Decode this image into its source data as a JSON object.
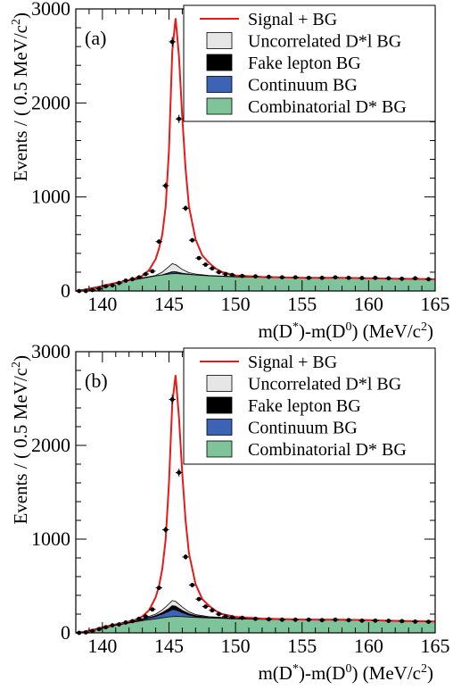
{
  "chart_data": [
    {
      "type": "histogram-fit",
      "panel_label": "(a)",
      "xlabel": {
        "base1": "m(D",
        "sup1": "*",
        "mid": ")-m(D",
        "sup2": "0",
        "end": ") (MeV/c",
        "sup3": "2",
        "tail": ")"
      },
      "ylabel": {
        "base": "Events / ( 0.5 MeV/c",
        "sup": "2",
        "tail": ")"
      },
      "xlim": [
        138,
        165
      ],
      "ylim": [
        0,
        3000
      ],
      "xticks": [
        140,
        145,
        150,
        155,
        160,
        165
      ],
      "yticks": [
        0,
        1000,
        2000,
        3000
      ],
      "grid": false,
      "legend_position": "top-right",
      "legend": [
        {
          "label": "Signal + BG",
          "type": "line",
          "color": "#e8191a"
        },
        {
          "label": "Uncorrelated D*l BG",
          "type": "box",
          "color": "#e6e6e6"
        },
        {
          "label": "Fake lepton BG",
          "type": "box",
          "color": "#000000"
        },
        {
          "label": "Continuum BG",
          "type": "box",
          "color": "#3d63b4"
        },
        {
          "label": "Combinatorial D* BG",
          "type": "box",
          "color": "#7fc39b"
        }
      ],
      "series": [
        {
          "name": "Combinatorial D* BG",
          "x": [
            138,
            139,
            140,
            141,
            142,
            143,
            144,
            145,
            145.5,
            146,
            147,
            148,
            150,
            152,
            155,
            158,
            160,
            162,
            165
          ],
          "y": [
            0,
            20,
            55,
            85,
            110,
            135,
            160,
            180,
            185,
            180,
            170,
            160,
            150,
            145,
            140,
            138,
            135,
            130,
            125
          ]
        },
        {
          "name": "Continuum BG",
          "x": [
            138,
            140,
            143,
            144.5,
            145.25,
            145.5,
            146,
            147,
            148,
            150,
            155,
            160,
            165
          ],
          "y": [
            0,
            55,
            135,
            170,
            200,
            200,
            185,
            170,
            160,
            150,
            140,
            135,
            125
          ]
        },
        {
          "name": "Fake lepton BG",
          "x": [
            138,
            140,
            143,
            144.5,
            145.25,
            145.5,
            146,
            147,
            148,
            150,
            155,
            160,
            165
          ],
          "y": [
            0,
            55,
            135,
            172,
            205,
            205,
            188,
            171,
            161,
            151,
            141,
            136,
            126
          ]
        },
        {
          "name": "Uncorrelated D*l BG",
          "x": [
            138,
            140,
            143,
            144,
            144.5,
            145,
            145.25,
            145.5,
            146,
            146.5,
            147,
            148,
            150,
            155,
            160,
            165
          ],
          "y": [
            0,
            55,
            140,
            165,
            200,
            260,
            290,
            280,
            230,
            195,
            180,
            165,
            152,
            141,
            136,
            126
          ]
        },
        {
          "name": "Signal + BG",
          "x": [
            138,
            138.5,
            139,
            139.5,
            140,
            140.5,
            141,
            141.5,
            142,
            142.5,
            143,
            143.5,
            144,
            144.25,
            144.5,
            144.75,
            145,
            145.25,
            145.5,
            145.75,
            146,
            146.25,
            146.5,
            147,
            147.5,
            148,
            148.5,
            149,
            150,
            152,
            155,
            158,
            160,
            162,
            165
          ],
          "y": [
            0,
            5,
            20,
            35,
            55,
            70,
            85,
            100,
            115,
            135,
            160,
            220,
            340,
            450,
            600,
            900,
            1500,
            2550,
            2900,
            2500,
            1850,
            1300,
            900,
            550,
            380,
            300,
            240,
            200,
            165,
            150,
            140,
            140,
            135,
            130,
            125
          ]
        },
        {
          "name": "Data",
          "type": "scatter",
          "x": [
            138.25,
            138.75,
            139.25,
            139.75,
            140.25,
            140.75,
            141.25,
            141.75,
            142.25,
            142.75,
            143.25,
            143.75,
            144.25,
            144.75,
            145.25,
            145.75,
            146.25,
            146.75,
            147.25,
            147.75,
            148.25,
            148.75,
            149.25,
            149.75,
            150.5,
            151.5,
            152.5,
            153.5,
            154.5,
            155.5,
            156.5,
            157.5,
            158.5,
            159.5,
            160.5,
            161.5,
            162.5,
            163.5,
            164.5
          ],
          "y": [
            0,
            0,
            10,
            25,
            50,
            60,
            85,
            110,
            125,
            145,
            180,
            210,
            525,
            1120,
            2650,
            1830,
            880,
            540,
            350,
            280,
            240,
            200,
            180,
            170,
            160,
            155,
            150,
            145,
            145,
            140,
            140,
            145,
            140,
            138,
            140,
            135,
            130,
            135,
            125
          ]
        }
      ]
    },
    {
      "type": "histogram-fit",
      "panel_label": "(b)",
      "xlabel": {
        "base1": "m(D",
        "sup1": "*",
        "mid": ")-m(D",
        "sup2": "0",
        "end": ") (MeV/c",
        "sup3": "2",
        "tail": ")"
      },
      "ylabel": {
        "base": "Events / ( 0.5 MeV/c",
        "sup": "2",
        "tail": ")"
      },
      "xlim": [
        138,
        165
      ],
      "ylim": [
        0,
        3000
      ],
      "xticks": [
        140,
        145,
        150,
        155,
        160,
        165
      ],
      "yticks": [
        0,
        1000,
        2000,
        3000
      ],
      "grid": false,
      "legend_position": "top-right",
      "legend": [
        {
          "label": "Signal + BG",
          "type": "line",
          "color": "#e8191a"
        },
        {
          "label": "Uncorrelated D*l BG",
          "type": "box",
          "color": "#e6e6e6"
        },
        {
          "label": "Fake lepton BG",
          "type": "box",
          "color": "#000000"
        },
        {
          "label": "Continuum BG",
          "type": "box",
          "color": "#3d63b4"
        },
        {
          "label": "Combinatorial D* BG",
          "type": "box",
          "color": "#7fc39b"
        }
      ],
      "series": [
        {
          "name": "Combinatorial D* BG",
          "x": [
            138,
            139,
            140,
            141,
            142,
            143,
            144,
            145,
            145.5,
            146,
            147,
            148,
            150,
            152,
            155,
            158,
            160,
            162,
            165
          ],
          "y": [
            0,
            20,
            50,
            80,
            105,
            130,
            150,
            170,
            175,
            172,
            165,
            158,
            150,
            145,
            140,
            136,
            133,
            128,
            122
          ]
        },
        {
          "name": "Continuum BG",
          "x": [
            138,
            140,
            143,
            144,
            144.5,
            145,
            145.25,
            145.5,
            146,
            146.5,
            147,
            148,
            150,
            155,
            160,
            165
          ],
          "y": [
            0,
            50,
            140,
            175,
            200,
            230,
            250,
            245,
            215,
            190,
            175,
            162,
            152,
            141,
            134,
            123
          ]
        },
        {
          "name": "Fake lepton BG",
          "x": [
            138,
            140,
            143,
            144,
            144.5,
            145,
            145.25,
            145.5,
            146,
            146.5,
            147,
            148,
            150,
            155,
            160,
            165
          ],
          "y": [
            0,
            50,
            142,
            185,
            215,
            260,
            290,
            285,
            240,
            205,
            185,
            166,
            154,
            142,
            135,
            124
          ]
        },
        {
          "name": "Uncorrelated D*l BG",
          "x": [
            138,
            140,
            143,
            144,
            144.5,
            145,
            145.25,
            145.5,
            146,
            146.5,
            147,
            148,
            150,
            155,
            160,
            165
          ],
          "y": [
            0,
            52,
            150,
            200,
            245,
            310,
            345,
            335,
            275,
            225,
            195,
            172,
            156,
            143,
            136,
            124
          ]
        },
        {
          "name": "Signal + BG",
          "x": [
            138,
            138.5,
            139,
            139.5,
            140,
            140.5,
            141,
            141.5,
            142,
            142.5,
            143,
            143.5,
            144,
            144.25,
            144.5,
            144.75,
            145,
            145.25,
            145.5,
            145.75,
            146,
            146.25,
            146.5,
            147,
            147.5,
            148,
            148.5,
            149,
            150,
            152,
            155,
            158,
            160,
            162,
            165
          ],
          "y": [
            0,
            8,
            25,
            40,
            60,
            75,
            90,
            105,
            120,
            140,
            175,
            240,
            380,
            500,
            680,
            1000,
            1600,
            2450,
            2750,
            2300,
            1700,
            1200,
            850,
            520,
            360,
            290,
            235,
            200,
            170,
            152,
            142,
            140,
            135,
            128,
            122
          ]
        },
        {
          "name": "Data",
          "type": "scatter",
          "x": [
            138.25,
            138.75,
            139.25,
            139.75,
            140.25,
            140.75,
            141.25,
            141.75,
            142.25,
            142.75,
            143.25,
            143.75,
            144.25,
            144.75,
            145.25,
            145.75,
            146.25,
            146.75,
            147.25,
            147.75,
            148.25,
            148.75,
            149.25,
            149.75,
            150.5,
            151.5,
            152.5,
            153.5,
            154.5,
            155.5,
            156.5,
            157.5,
            158.5,
            159.5,
            160.5,
            161.5,
            162.5,
            163.5,
            164.5
          ],
          "y": [
            0,
            5,
            20,
            40,
            60,
            80,
            90,
            110,
            125,
            150,
            175,
            250,
            480,
            1100,
            2490,
            1710,
            810,
            510,
            360,
            280,
            240,
            200,
            175,
            165,
            160,
            150,
            145,
            140,
            140,
            140,
            135,
            140,
            135,
            130,
            130,
            128,
            125,
            120,
            118
          ]
        }
      ]
    }
  ]
}
